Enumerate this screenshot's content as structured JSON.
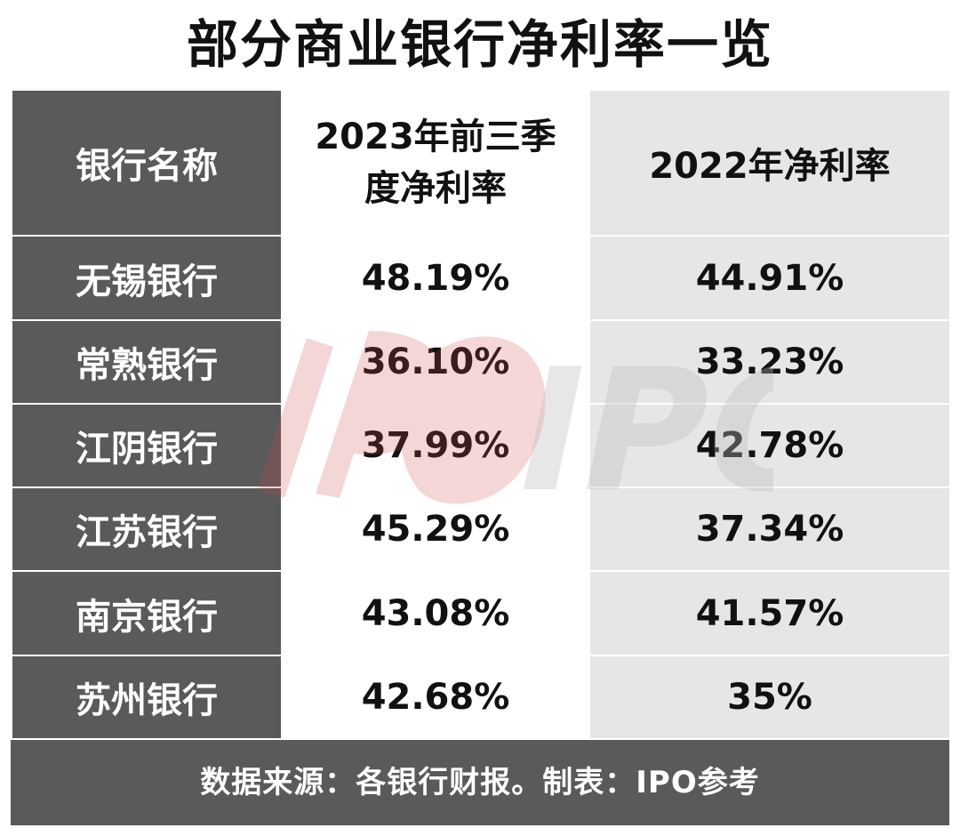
{
  "title": "部分商业银行净利率一览",
  "watermark": {
    "text": "IPO参考",
    "accent_color": "#d24848"
  },
  "chart_data": {
    "type": "table",
    "title": "部分商业银行净利率一览",
    "columns": [
      "银行名称",
      "2023年前三季度净利率",
      "2022年净利率"
    ],
    "header_lines": {
      "col1": [
        "2023年前三季",
        "度净利率"
      ]
    },
    "rows": [
      {
        "name": "无锡银行",
        "v2023q3": "48.19%",
        "v2022": "44.91%"
      },
      {
        "name": "常熟银行",
        "v2023q3": "36.10%",
        "v2022": "33.23%"
      },
      {
        "name": "江阴银行",
        "v2023q3": "37.99%",
        "v2022": "42.78%"
      },
      {
        "name": "江苏银行",
        "v2023q3": "45.29%",
        "v2022": "37.34%"
      },
      {
        "name": "南京银行",
        "v2023q3": "43.08%",
        "v2022": "41.57%"
      },
      {
        "name": "苏州银行",
        "v2023q3": "42.68%",
        "v2022": "35%"
      }
    ],
    "footer": "数据来源：各银行财报。制表：IPO参考"
  }
}
